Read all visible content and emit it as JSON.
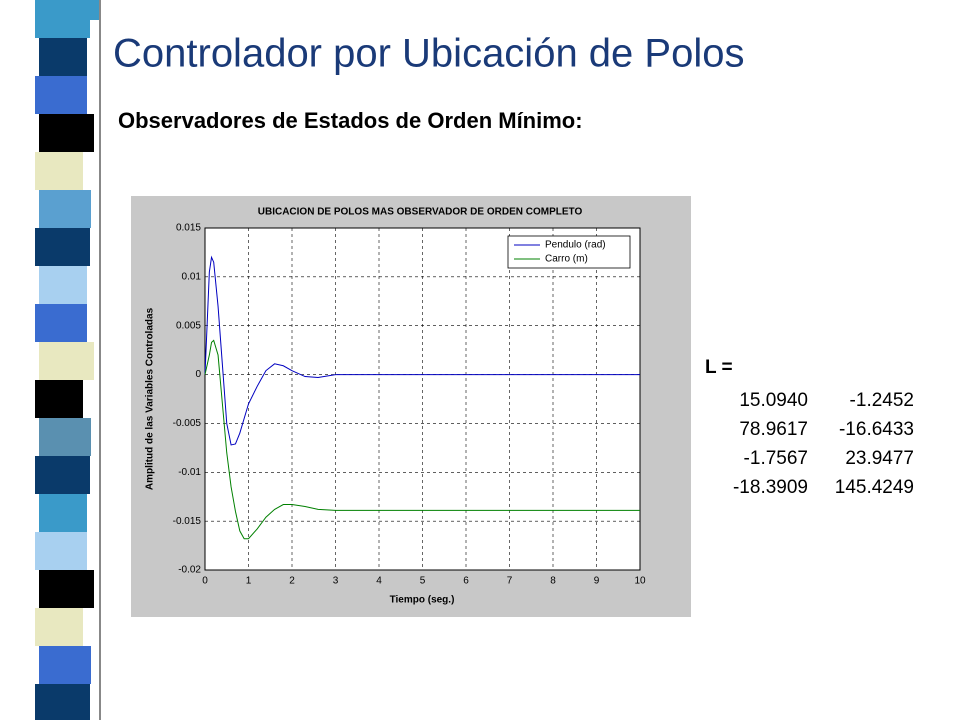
{
  "title": "Controlador por Ubicación de Polos",
  "subtitle": "Observadores de Estados de Orden Mínimo:",
  "chart_data": {
    "type": "line",
    "title": "UBICACION DE POLOS MAS OBSERVADOR DE ORDEN COMPLETO",
    "xlabel": "Tiempo (seg.)",
    "ylabel": "Amplitud de las Variables Controladas",
    "x": [
      0,
      0.1,
      0.15,
      0.2,
      0.3,
      0.4,
      0.5,
      0.6,
      0.7,
      0.8,
      0.9,
      1.0,
      1.2,
      1.4,
      1.6,
      1.8,
      2.0,
      2.3,
      2.6,
      3,
      4,
      5,
      6,
      7,
      8,
      9,
      10
    ],
    "series": [
      {
        "name": "Pendulo (rad)",
        "color": "#0000c0",
        "values": [
          0,
          0.0105,
          0.012,
          0.0115,
          0.007,
          0.001,
          -0.005,
          -0.0072,
          -0.0071,
          -0.006,
          -0.0045,
          -0.003,
          -0.0012,
          0.0004,
          0.0011,
          0.0009,
          0.0004,
          -0.0002,
          -0.0003,
          0,
          0,
          0,
          0,
          0,
          0,
          0,
          0
        ]
      },
      {
        "name": "Carro (m)",
        "color": "#008000",
        "values": [
          0,
          0.002,
          0.0033,
          0.0035,
          0.002,
          -0.003,
          -0.008,
          -0.0115,
          -0.014,
          -0.016,
          -0.0168,
          -0.0168,
          -0.0158,
          -0.0146,
          -0.0138,
          -0.0133,
          -0.0133,
          -0.0135,
          -0.0138,
          -0.0139,
          -0.0139,
          -0.0139,
          -0.0139,
          -0.0139,
          -0.0139,
          -0.0139,
          -0.0139
        ]
      }
    ],
    "xlim": [
      0,
      10
    ],
    "xticks": [
      0,
      1,
      2,
      3,
      4,
      5,
      6,
      7,
      8,
      9,
      10
    ],
    "ylim": [
      -0.02,
      0.015
    ],
    "yticks": [
      -0.02,
      -0.015,
      -0.01,
      -0.005,
      0,
      0.005,
      0.01,
      0.015
    ],
    "grid": true,
    "legend": "upper right"
  },
  "matrix": {
    "label": "L =",
    "rows": [
      [
        "15.0940",
        "-1.2452"
      ],
      [
        "78.9617",
        "-16.6433"
      ],
      [
        "-1.7567",
        "23.9477"
      ],
      [
        "-18.3909",
        "145.4249"
      ]
    ]
  }
}
